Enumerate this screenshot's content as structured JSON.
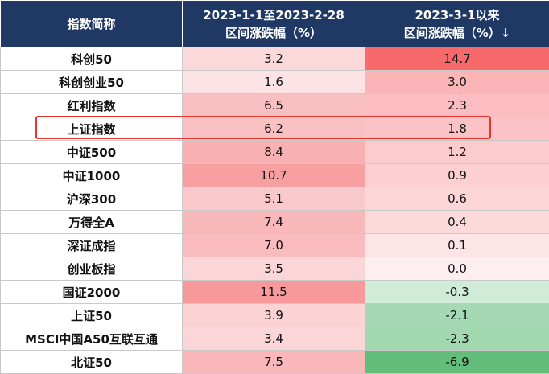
{
  "header": {
    "col_name": "指数简称",
    "col_period1": "2023-1-1至2023-2-28\n区间涨跌幅（%）",
    "col_period2": "2023-3-1以来\n区间涨跌幅（%）↓"
  },
  "rows": [
    {
      "name": "科创50",
      "p1": "3.2",
      "p2": "14.7"
    },
    {
      "name": "科创创业50",
      "p1": "1.6",
      "p2": "3.0"
    },
    {
      "name": "红利指数",
      "p1": "6.5",
      "p2": "2.3"
    },
    {
      "name": "上证指数",
      "p1": "6.2",
      "p2": "1.8"
    },
    {
      "name": "中证500",
      "p1": "8.4",
      "p2": "1.2"
    },
    {
      "name": "中证1000",
      "p1": "10.7",
      "p2": "0.9"
    },
    {
      "name": "沪深300",
      "p1": "5.1",
      "p2": "0.6"
    },
    {
      "name": "万得全A",
      "p1": "7.4",
      "p2": "0.4"
    },
    {
      "name": "深证成指",
      "p1": "7.0",
      "p2": "0.1"
    },
    {
      "name": "创业板指",
      "p1": "3.5",
      "p2": "0.0"
    },
    {
      "name": "国证2000",
      "p1": "11.5",
      "p2": "-0.3"
    },
    {
      "name": "上证50",
      "p1": "3.9",
      "p2": "-2.1"
    },
    {
      "name": "MSCI中国A50互联互通",
      "p1": "3.4",
      "p2": "-2.3"
    },
    {
      "name": "北证50",
      "p1": "7.5",
      "p2": "-6.9"
    }
  ],
  "colors": {
    "header_bg": "#1f3864",
    "highlight_border": "#e8342c",
    "positive_max": "#f8696b",
    "negative_max": "#63be7b"
  }
}
